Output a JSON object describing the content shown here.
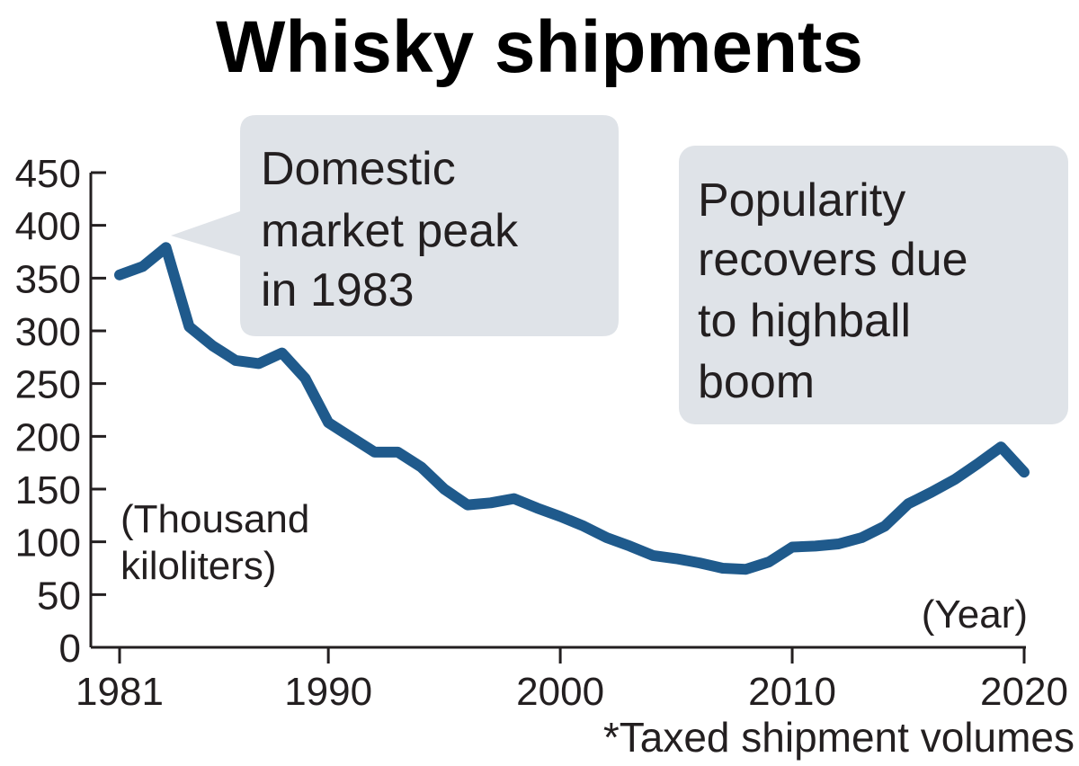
{
  "chart_data": {
    "type": "line",
    "title": "Whisky shipments",
    "ylabel_lines": [
      "(Thousand",
      "kiloliters)"
    ],
    "xlabel": "(Year)",
    "footnote": "*Taxed shipment volumes",
    "ylim": [
      0,
      450
    ],
    "xlim": [
      1981,
      2020
    ],
    "yticks": [
      0,
      50,
      100,
      150,
      200,
      250,
      300,
      350,
      400,
      450
    ],
    "xticks": [
      1981,
      1990,
      2000,
      2010,
      2020
    ],
    "grid": false,
    "series": [
      {
        "color": "#1f5a8c",
        "x": [
          1981,
          1982,
          1983,
          1984,
          1985,
          1986,
          1987,
          1988,
          1989,
          1990,
          1991,
          1992,
          1993,
          1994,
          1995,
          1996,
          1997,
          1998,
          1999,
          2000,
          2001,
          2002,
          2003,
          2004,
          2005,
          2006,
          2007,
          2008,
          2009,
          2010,
          2011,
          2012,
          2013,
          2014,
          2015,
          2016,
          2017,
          2018,
          2019,
          2020
        ],
        "y": [
          353,
          361,
          379,
          304,
          286,
          272,
          269,
          279,
          255,
          213,
          199,
          185,
          185,
          171,
          150,
          135,
          137,
          141,
          132,
          124,
          115,
          104,
          96,
          87,
          84,
          80,
          75,
          74,
          81,
          95,
          96,
          98,
          104,
          115,
          136,
          147,
          159,
          174,
          190,
          166
        ]
      }
    ],
    "annotations": [
      {
        "lines": [
          "Domestic",
          "market peak",
          "in 1983"
        ],
        "box_color": "#dfe3e8"
      },
      {
        "lines": [
          "Popularity",
          "recovers due",
          "to highball",
          "boom"
        ],
        "box_color": "#dfe3e8"
      }
    ]
  }
}
